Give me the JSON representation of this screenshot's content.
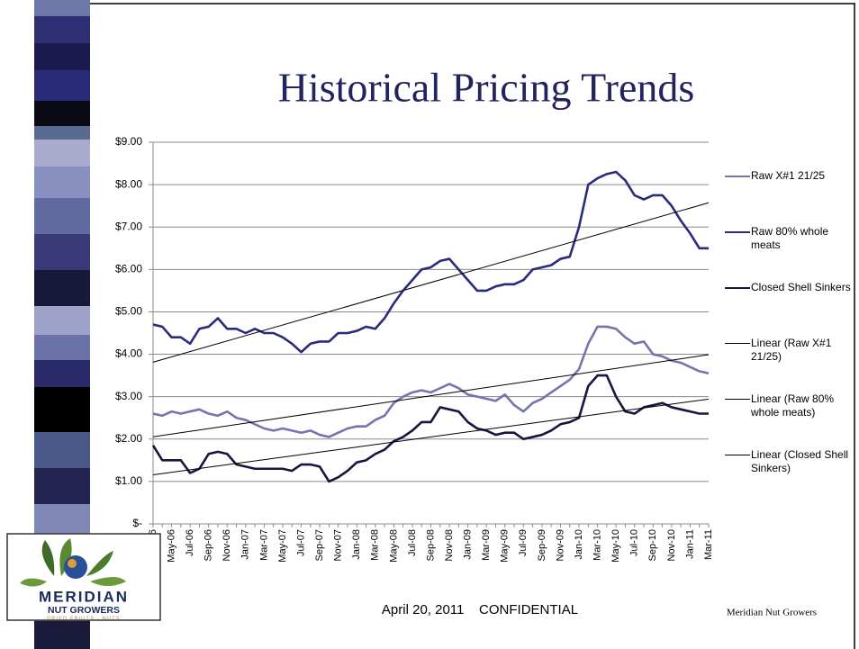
{
  "chart_data": {
    "type": "line",
    "title": "Historical Pricing Trends",
    "categories": [
      "Mar-06",
      null,
      "May-06",
      null,
      "Jul-06",
      null,
      "Sep-06",
      null,
      "Nov-06",
      null,
      "Jan-07",
      null,
      "Mar-07",
      null,
      "May-07",
      null,
      "Jul-07",
      null,
      "Sep-07",
      null,
      "Nov-07",
      null,
      "Jan-08",
      null,
      "Mar-08",
      null,
      "May-08",
      null,
      "Jul-08",
      null,
      "Sep-08",
      null,
      "Nov-08",
      null,
      "Jan-09",
      null,
      "Mar-09",
      null,
      "May-09",
      null,
      "Jul-09",
      null,
      "Sep-09",
      null,
      "Nov-09",
      null,
      "Jan-10",
      null,
      "Mar-10",
      null,
      "May-10",
      null,
      "Jul-10",
      null,
      "Sep-10",
      null,
      "Nov-10",
      null,
      "Jan-11",
      null,
      "Mar-11"
    ],
    "series": [
      {
        "name": "Raw X#1 21/25",
        "color": "#7474b0",
        "values": [
          2.6,
          2.55,
          2.65,
          2.6,
          2.65,
          2.7,
          2.6,
          2.55,
          2.65,
          2.5,
          2.45,
          2.35,
          2.25,
          2.2,
          2.25,
          2.2,
          2.15,
          2.2,
          2.1,
          2.05,
          2.15,
          2.25,
          2.3,
          2.3,
          2.45,
          2.55,
          2.85,
          3.0,
          3.1,
          3.15,
          3.1,
          3.2,
          3.3,
          3.2,
          3.05,
          3.0,
          2.95,
          2.9,
          3.05,
          2.8,
          2.65,
          2.85,
          2.95,
          3.1,
          3.25,
          3.4,
          3.65,
          4.25,
          4.65,
          4.65,
          4.6,
          4.4,
          4.25,
          4.3,
          4.0,
          3.95,
          3.85,
          3.8,
          3.7,
          3.6,
          3.55
        ]
      },
      {
        "name": "Raw 80% whole meats",
        "color": "#2b2b7e",
        "values": [
          4.7,
          4.65,
          4.4,
          4.4,
          4.25,
          4.6,
          4.65,
          4.85,
          4.6,
          4.6,
          4.5,
          4.6,
          4.5,
          4.5,
          4.4,
          4.25,
          4.05,
          4.25,
          4.3,
          4.3,
          4.5,
          4.5,
          4.55,
          4.65,
          4.6,
          4.85,
          5.2,
          5.5,
          5.75,
          6.0,
          6.05,
          6.2,
          6.25,
          6.0,
          5.75,
          5.5,
          5.5,
          5.6,
          5.65,
          5.65,
          5.75,
          6.0,
          6.05,
          6.1,
          6.25,
          6.3,
          7.0,
          8.0,
          8.15,
          8.25,
          8.3,
          8.1,
          7.75,
          7.65,
          7.75,
          7.75,
          7.5,
          7.15,
          6.85,
          6.5,
          6.5
        ]
      },
      {
        "name": "Closed Shell Sinkers",
        "color": "#16163e",
        "values": [
          1.85,
          1.5,
          1.5,
          1.5,
          1.2,
          1.3,
          1.65,
          1.7,
          1.65,
          1.4,
          1.35,
          1.3,
          1.3,
          1.3,
          1.3,
          1.25,
          1.4,
          1.4,
          1.35,
          1.0,
          1.1,
          1.25,
          1.45,
          1.5,
          1.65,
          1.75,
          1.95,
          2.05,
          2.2,
          2.4,
          2.4,
          2.75,
          2.7,
          2.65,
          2.4,
          2.25,
          2.2,
          2.1,
          2.15,
          2.15,
          2.0,
          2.05,
          2.1,
          2.2,
          2.35,
          2.4,
          2.5,
          3.25,
          3.5,
          3.5,
          3.0,
          2.65,
          2.6,
          2.75,
          2.8,
          2.85,
          2.75,
          2.7,
          2.65,
          2.6,
          2.6
        ]
      },
      {
        "name": "Linear (Raw X#1 21/25)",
        "color": "#000000",
        "trend_of": 0
      },
      {
        "name": "Linear (Raw 80% whole meats)",
        "color": "#000000",
        "trend_of": 1
      },
      {
        "name": "Linear (Closed Shell Sinkers)",
        "color": "#000000",
        "trend_of": 2
      }
    ],
    "ylim": [
      0,
      9
    ],
    "yticks": [
      {
        "value": 0,
        "label": "$-"
      },
      {
        "value": 1,
        "label": "$1.00"
      },
      {
        "value": 2,
        "label": "$2.00"
      },
      {
        "value": 3,
        "label": "$3.00"
      },
      {
        "value": 4,
        "label": "$4.00"
      },
      {
        "value": 5,
        "label": "$5.00"
      },
      {
        "value": 6,
        "label": "$6.00"
      },
      {
        "value": 7,
        "label": "$7.00"
      },
      {
        "value": 8,
        "label": "$8.00"
      },
      {
        "value": 9,
        "label": "$9.00"
      }
    ],
    "grid": true,
    "legend": "right"
  },
  "footer": {
    "center": "April 20, 2011    CONFIDENTIAL",
    "right": "Meridian Nut Growers"
  },
  "logo": {
    "name": "MERIDIAN",
    "subname": "NUT GROWERS",
    "tagline": "DRIED FRUITS - NUTS"
  }
}
